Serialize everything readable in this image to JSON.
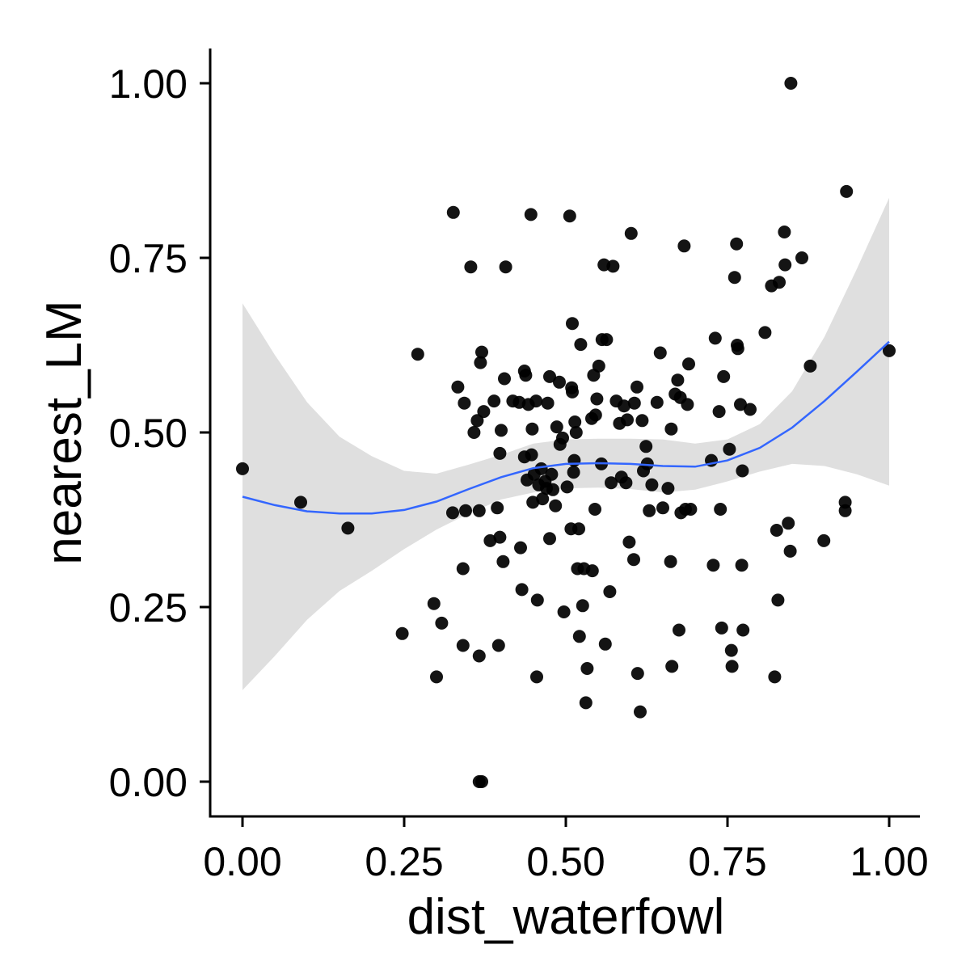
{
  "chart_data": {
    "type": "scatter",
    "xlabel": "dist_waterfowl",
    "ylabel": "nearest_LM",
    "xlim": [
      -0.05,
      1.05
    ],
    "ylim": [
      -0.05,
      1.05
    ],
    "x_ticks": [
      0,
      0.25,
      0.5,
      0.75,
      1
    ],
    "x_tick_labels": [
      "0.00",
      "0.25",
      "0.50",
      "0.75",
      "1.00"
    ],
    "y_ticks": [
      0,
      0.25,
      0.5,
      0.75,
      1
    ],
    "y_tick_labels": [
      "0.00",
      "0.25",
      "0.50",
      "0.75",
      "1.00"
    ],
    "grid": false,
    "legend": "none",
    "colors": {
      "points": "#000000",
      "smooth_line": "#3366FF",
      "confidence_band": "#D9D9D9",
      "axis": "#000000"
    },
    "points": [
      [
        0.0,
        0.448
      ],
      [
        0.09,
        0.4
      ],
      [
        0.163,
        0.363
      ],
      [
        0.247,
        0.212
      ],
      [
        0.271,
        0.612
      ],
      [
        0.296,
        0.255
      ],
      [
        0.3,
        0.15
      ],
      [
        0.308,
        0.227
      ],
      [
        0.325,
        0.385
      ],
      [
        0.326,
        0.815
      ],
      [
        0.333,
        0.565
      ],
      [
        0.341,
        0.305
      ],
      [
        0.341,
        0.195
      ],
      [
        0.343,
        0.542
      ],
      [
        0.345,
        0.388
      ],
      [
        0.353,
        0.737
      ],
      [
        0.358,
        0.5
      ],
      [
        0.363,
        0.517
      ],
      [
        0.366,
        0.388
      ],
      [
        0.366,
        0.18
      ],
      [
        0.366,
        0.0
      ],
      [
        0.37,
        0.0
      ],
      [
        0.368,
        0.6
      ],
      [
        0.37,
        0.615
      ],
      [
        0.373,
        0.53
      ],
      [
        0.383,
        0.345
      ],
      [
        0.389,
        0.545
      ],
      [
        0.394,
        0.392
      ],
      [
        0.396,
        0.195
      ],
      [
        0.398,
        0.47
      ],
      [
        0.398,
        0.35
      ],
      [
        0.4,
        0.503
      ],
      [
        0.403,
        0.315
      ],
      [
        0.405,
        0.577
      ],
      [
        0.407,
        0.737
      ],
      [
        0.418,
        0.545
      ],
      [
        0.428,
        0.543
      ],
      [
        0.43,
        0.335
      ],
      [
        0.432,
        0.275
      ],
      [
        0.436,
        0.588
      ],
      [
        0.436,
        0.465
      ],
      [
        0.438,
        0.582
      ],
      [
        0.44,
        0.432
      ],
      [
        0.442,
        0.54
      ],
      [
        0.446,
        0.812
      ],
      [
        0.447,
        0.468
      ],
      [
        0.448,
        0.505
      ],
      [
        0.449,
        0.4
      ],
      [
        0.451,
        0.44
      ],
      [
        0.454,
        0.545
      ],
      [
        0.455,
        0.15
      ],
      [
        0.456,
        0.26
      ],
      [
        0.458,
        0.425
      ],
      [
        0.462,
        0.448
      ],
      [
        0.464,
        0.405
      ],
      [
        0.468,
        0.43
      ],
      [
        0.47,
        0.42
      ],
      [
        0.472,
        0.542
      ],
      [
        0.475,
        0.58
      ],
      [
        0.475,
        0.348
      ],
      [
        0.478,
        0.44
      ],
      [
        0.48,
        0.418
      ],
      [
        0.484,
        0.395
      ],
      [
        0.486,
        0.508
      ],
      [
        0.49,
        0.572
      ],
      [
        0.491,
        0.483
      ],
      [
        0.495,
        0.492
      ],
      [
        0.497,
        0.243
      ],
      [
        0.502,
        0.422
      ],
      [
        0.506,
        0.81
      ],
      [
        0.508,
        0.362
      ],
      [
        0.509,
        0.564
      ],
      [
        0.51,
        0.656
      ],
      [
        0.51,
        0.558
      ],
      [
        0.512,
        0.443
      ],
      [
        0.513,
        0.46
      ],
      [
        0.514,
        0.515
      ],
      [
        0.516,
        0.5
      ],
      [
        0.518,
        0.305
      ],
      [
        0.52,
        0.362
      ],
      [
        0.521,
        0.208
      ],
      [
        0.523,
        0.626
      ],
      [
        0.526,
        0.252
      ],
      [
        0.528,
        0.305
      ],
      [
        0.531,
        0.113
      ],
      [
        0.533,
        0.162
      ],
      [
        0.54,
        0.52
      ],
      [
        0.541,
        0.302
      ],
      [
        0.543,
        0.582
      ],
      [
        0.545,
        0.39
      ],
      [
        0.546,
        0.525
      ],
      [
        0.548,
        0.548
      ],
      [
        0.551,
        0.595
      ],
      [
        0.555,
        0.455
      ],
      [
        0.556,
        0.633
      ],
      [
        0.559,
        0.74
      ],
      [
        0.561,
        0.197
      ],
      [
        0.563,
        0.633
      ],
      [
        0.568,
        0.272
      ],
      [
        0.57,
        0.428
      ],
      [
        0.573,
        0.738
      ],
      [
        0.578,
        0.545
      ],
      [
        0.583,
        0.513
      ],
      [
        0.586,
        0.436
      ],
      [
        0.59,
        0.538
      ],
      [
        0.593,
        0.428
      ],
      [
        0.595,
        0.518
      ],
      [
        0.598,
        0.343
      ],
      [
        0.601,
        0.785
      ],
      [
        0.605,
        0.318
      ],
      [
        0.606,
        0.542
      ],
      [
        0.61,
        0.565
      ],
      [
        0.611,
        0.155
      ],
      [
        0.615,
        0.1
      ],
      [
        0.618,
        0.517
      ],
      [
        0.62,
        0.445
      ],
      [
        0.624,
        0.48
      ],
      [
        0.626,
        0.455
      ],
      [
        0.629,
        0.388
      ],
      [
        0.633,
        0.425
      ],
      [
        0.641,
        0.543
      ],
      [
        0.646,
        0.614
      ],
      [
        0.65,
        0.392
      ],
      [
        0.658,
        0.42
      ],
      [
        0.662,
        0.315
      ],
      [
        0.663,
        0.505
      ],
      [
        0.664,
        0.165
      ],
      [
        0.669,
        0.555
      ],
      [
        0.673,
        0.575
      ],
      [
        0.675,
        0.217
      ],
      [
        0.677,
        0.55
      ],
      [
        0.678,
        0.385
      ],
      [
        0.683,
        0.767
      ],
      [
        0.685,
        0.39
      ],
      [
        0.688,
        0.54
      ],
      [
        0.69,
        0.598
      ],
      [
        0.693,
        0.39
      ],
      [
        0.725,
        0.46
      ],
      [
        0.728,
        0.31
      ],
      [
        0.731,
        0.635
      ],
      [
        0.737,
        0.53
      ],
      [
        0.739,
        0.39
      ],
      [
        0.741,
        0.22
      ],
      [
        0.744,
        0.58
      ],
      [
        0.753,
        0.476
      ],
      [
        0.756,
        0.188
      ],
      [
        0.757,
        0.165
      ],
      [
        0.761,
        0.722
      ],
      [
        0.764,
        0.77
      ],
      [
        0.765,
        0.625
      ],
      [
        0.766,
        0.62
      ],
      [
        0.77,
        0.54
      ],
      [
        0.772,
        0.31
      ],
      [
        0.773,
        0.445
      ],
      [
        0.774,
        0.217
      ],
      [
        0.785,
        0.533
      ],
      [
        0.808,
        0.643
      ],
      [
        0.818,
        0.71
      ],
      [
        0.823,
        0.15
      ],
      [
        0.826,
        0.36
      ],
      [
        0.828,
        0.26
      ],
      [
        0.83,
        0.715
      ],
      [
        0.838,
        0.787
      ],
      [
        0.839,
        0.74
      ],
      [
        0.844,
        0.37
      ],
      [
        0.847,
        0.33
      ],
      [
        0.848,
        1.0
      ],
      [
        0.865,
        0.75
      ],
      [
        0.878,
        0.595
      ],
      [
        0.899,
        0.345
      ],
      [
        0.932,
        0.4
      ],
      [
        0.932,
        0.388
      ],
      [
        0.934,
        0.845
      ],
      [
        1.0,
        0.617
      ]
    ],
    "smooth": {
      "x": [
        0.0,
        0.05,
        0.1,
        0.15,
        0.2,
        0.25,
        0.3,
        0.35,
        0.4,
        0.45,
        0.5,
        0.55,
        0.6,
        0.65,
        0.7,
        0.75,
        0.8,
        0.85,
        0.9,
        0.95,
        1.0
      ],
      "y": [
        0.408,
        0.396,
        0.387,
        0.384,
        0.384,
        0.389,
        0.401,
        0.419,
        0.436,
        0.449,
        0.455,
        0.456,
        0.455,
        0.452,
        0.451,
        0.46,
        0.478,
        0.507,
        0.545,
        0.587,
        0.63
      ],
      "lower": [
        0.131,
        0.18,
        0.232,
        0.273,
        0.302,
        0.333,
        0.361,
        0.384,
        0.404,
        0.414,
        0.42,
        0.421,
        0.419,
        0.414,
        0.418,
        0.43,
        0.444,
        0.455,
        0.452,
        0.44,
        0.424
      ],
      "upper": [
        0.685,
        0.611,
        0.543,
        0.494,
        0.466,
        0.445,
        0.441,
        0.454,
        0.468,
        0.484,
        0.49,
        0.491,
        0.491,
        0.49,
        0.484,
        0.49,
        0.512,
        0.559,
        0.637,
        0.734,
        0.836
      ]
    }
  }
}
